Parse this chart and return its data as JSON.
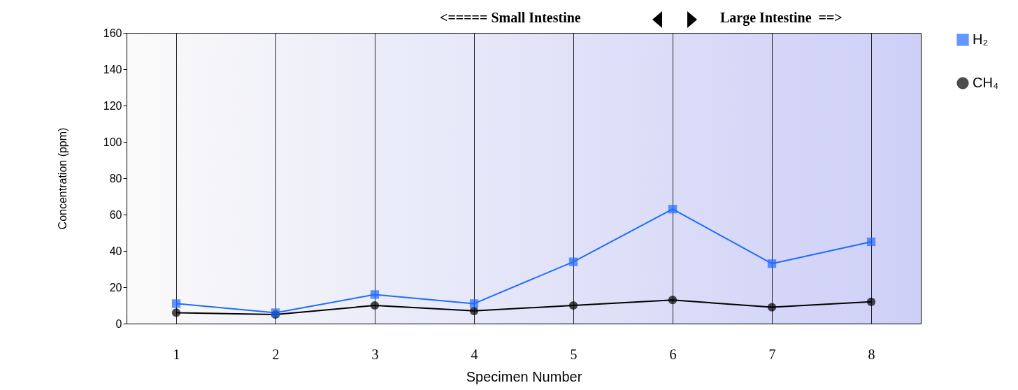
{
  "chart_data": {
    "type": "line",
    "xlabel": "Specimen Number",
    "ylabel": "Concentration (ppm)",
    "categories": [
      "1",
      "2",
      "3",
      "4",
      "5",
      "6",
      "7",
      "8"
    ],
    "series": [
      {
        "name": "H₂",
        "color": "#1f6bff",
        "marker": "square",
        "values": [
          11,
          6,
          16,
          11,
          34,
          63,
          33,
          45
        ]
      },
      {
        "name": "CH₄",
        "color": "#000000",
        "marker": "circle",
        "values": [
          6,
          5,
          10,
          7,
          10,
          13,
          9,
          12
        ]
      }
    ],
    "ylim": [
      0,
      160
    ],
    "yticks": [
      0,
      20,
      40,
      60,
      80,
      100,
      120,
      140,
      160
    ],
    "grid": "x",
    "legend": "right",
    "annotations": [
      "<===== Small Intestine",
      "Large Intestine  ==>"
    ]
  }
}
